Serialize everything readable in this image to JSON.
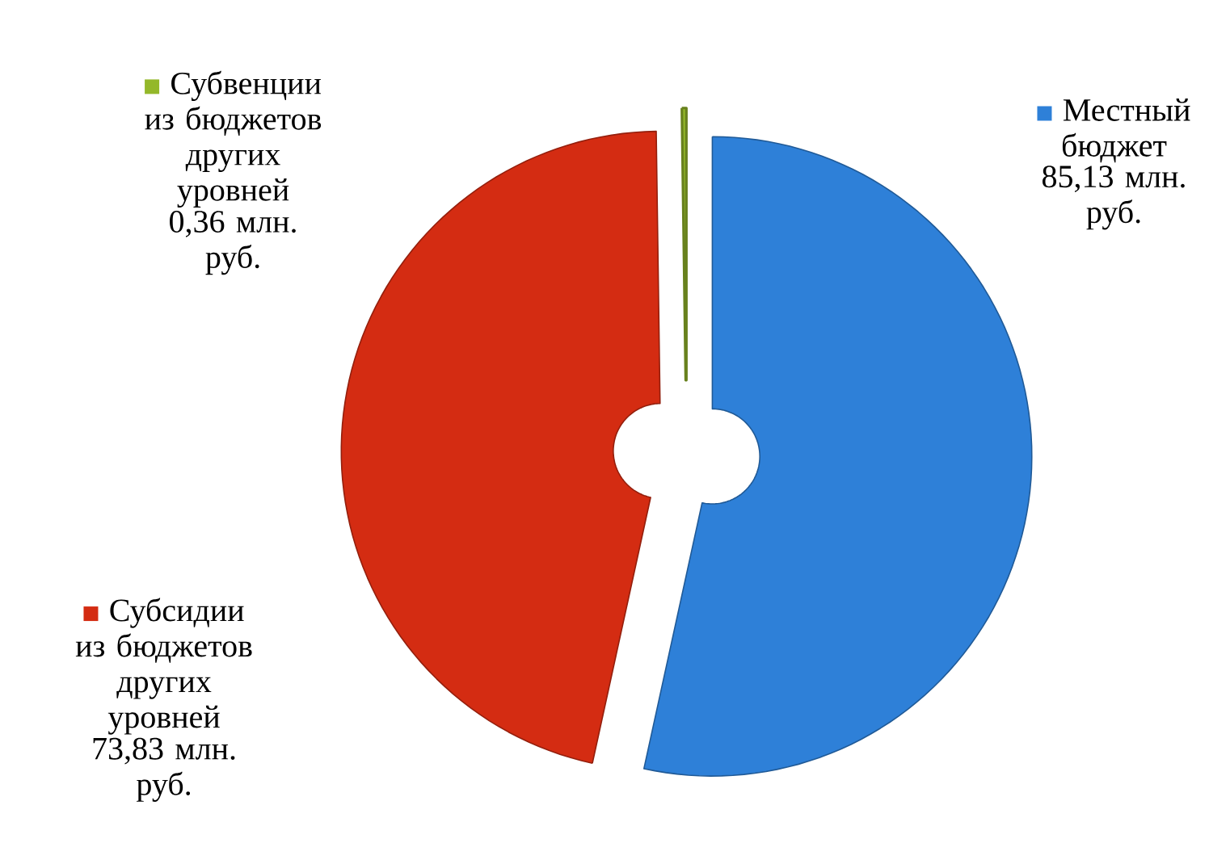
{
  "chart_data": {
    "type": "donut",
    "categories": [
      "Местный бюджет",
      "Субсидии из бюджетов других уровней",
      "Субвенции из бюджетов других уровней"
    ],
    "values": [
      85.13,
      73.83,
      0.36
    ],
    "colors": [
      "#2e80d8",
      "#d42c12",
      "#94b82a"
    ],
    "value_labels": [
      "85,13 млн. руб.",
      "73,83 млн. руб.",
      "0,36 млн. руб."
    ],
    "legend": "top left"
  }
}
